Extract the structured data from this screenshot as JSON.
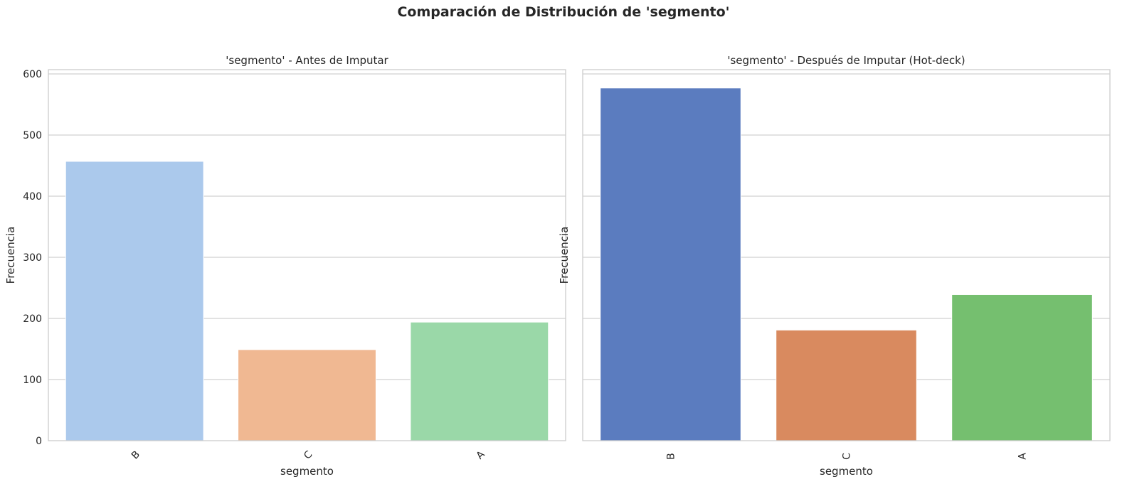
{
  "figure": {
    "suptitle": "Comparación de Distribución de 'segmento'"
  },
  "chart_data": [
    {
      "type": "bar",
      "title": "'segmento' - Antes de Imputar",
      "xlabel": "segmento",
      "ylabel": "Frecuencia",
      "categories": [
        "B",
        "C",
        "A"
      ],
      "values": [
        457,
        149,
        194
      ],
      "colors": [
        "#abc9ec",
        "#f0b892",
        "#9ad8a8"
      ],
      "ylim": [
        0,
        607
      ],
      "yticks": [
        0,
        100,
        200,
        300,
        400,
        500,
        600
      ],
      "grid": true,
      "legend": "none"
    },
    {
      "type": "bar",
      "title": "'segmento' - Después de Imputar (Hot-deck)",
      "xlabel": "segmento",
      "ylabel": "Frecuencia",
      "categories": [
        "B",
        "C",
        "A"
      ],
      "values": [
        577,
        181,
        239
      ],
      "colors": [
        "#5b7cbf",
        "#d98a5f",
        "#75bf6f"
      ],
      "ylim": [
        0,
        607
      ],
      "yticks": [
        0,
        100,
        200,
        300,
        400,
        500,
        600
      ],
      "grid": true,
      "legend": "none",
      "shared_y": true
    }
  ]
}
